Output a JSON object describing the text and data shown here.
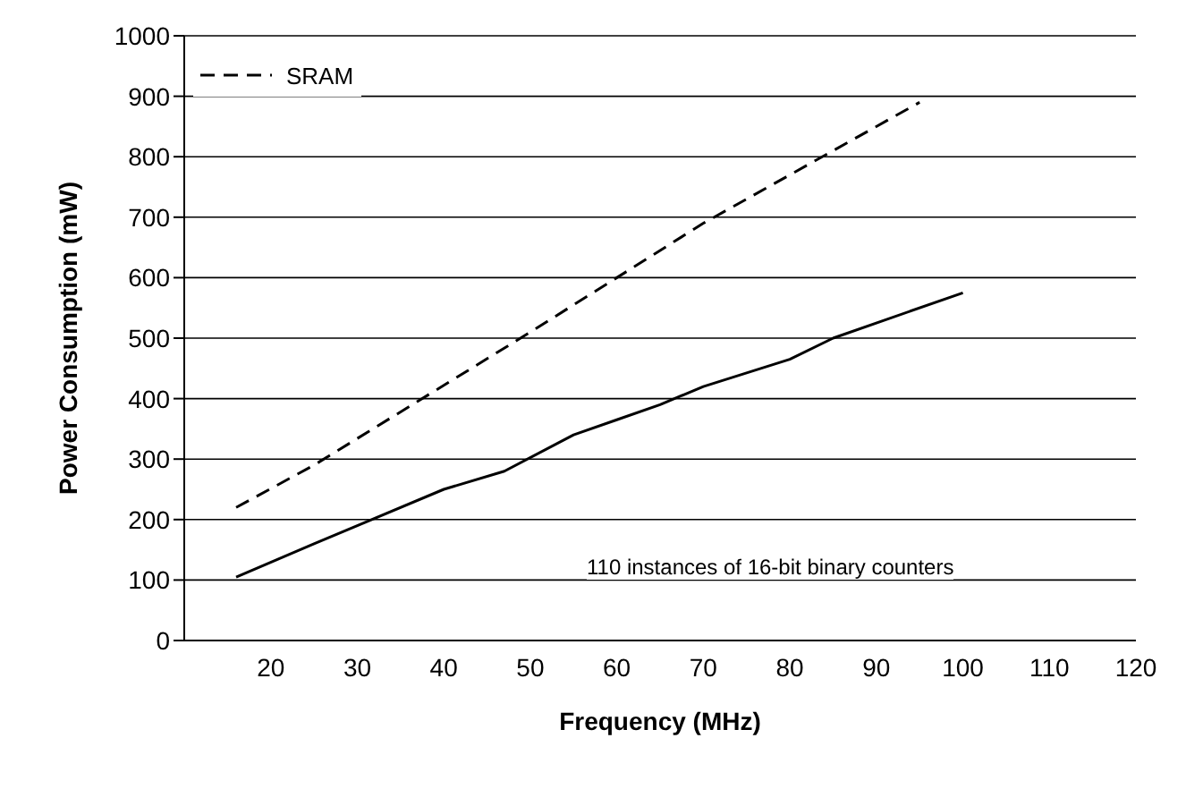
{
  "chart_data": {
    "type": "line",
    "xlabel": "Frequency (MHz)",
    "ylabel": "Power Consumption (mW)",
    "xlim": [
      10,
      120
    ],
    "xticks": [
      20,
      30,
      40,
      50,
      60,
      70,
      80,
      90,
      100,
      110,
      120
    ],
    "ylim": [
      0,
      1000
    ],
    "yticks": [
      0,
      100,
      200,
      300,
      400,
      500,
      600,
      700,
      800,
      900,
      1000
    ],
    "grid": "y",
    "legend": "top left",
    "marker": "none",
    "series": [
      {
        "color": "#000000",
        "line_style": "solid",
        "x": [
          16,
          25,
          30,
          40,
          47,
          55,
          60,
          65,
          70,
          80,
          85,
          100
        ],
        "values": [
          105,
          160,
          190,
          250,
          280,
          340,
          365,
          390,
          420,
          465,
          500,
          575
        ]
      },
      {
        "name": "SRAM",
        "color": "#000000",
        "line_style": "dashed",
        "x": [
          16,
          25,
          50,
          70,
          95
        ],
        "values": [
          220,
          290,
          510,
          690,
          890
        ]
      }
    ],
    "annotations": [
      "110 instances of 16-bit binary counters"
    ]
  }
}
